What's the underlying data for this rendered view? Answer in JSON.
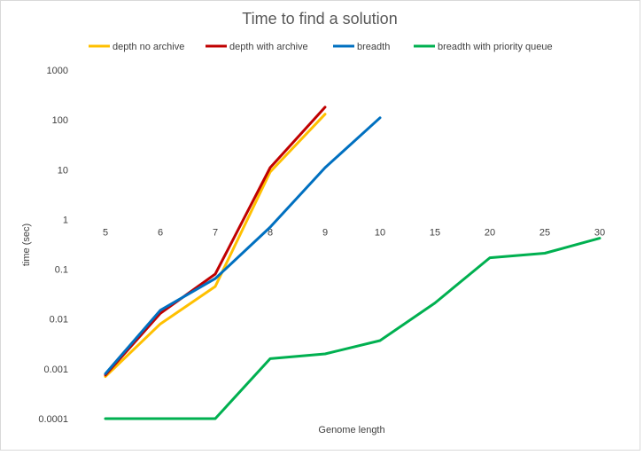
{
  "chart_data": {
    "type": "line",
    "title": "Time to find a solution",
    "xlabel": "Genome  length",
    "ylabel": "time (sec)",
    "yscale": "log",
    "ylim": [
      0.0001,
      1000
    ],
    "y_ticks": [
      "0.0001",
      "0.001",
      "0.01",
      "0.1",
      "1",
      "10",
      "100",
      "1000"
    ],
    "y_tick_values": [
      0.0001,
      0.001,
      0.01,
      0.1,
      1,
      10,
      100,
      1000
    ],
    "categories": [
      "5",
      "6",
      "7",
      "8",
      "9",
      "10",
      "15",
      "20",
      "25",
      "30"
    ],
    "grid": false,
    "legend_position": "top",
    "series": [
      {
        "name": "depth no archive",
        "color": "#FFC000",
        "values": [
          0.0007,
          0.008,
          0.045,
          9,
          130,
          null,
          null,
          null,
          null,
          null
        ]
      },
      {
        "name": "depth with archive",
        "color": "#C00000",
        "values": [
          0.00075,
          0.013,
          0.08,
          11,
          180,
          null,
          null,
          null,
          null,
          null
        ]
      },
      {
        "name": "breadth",
        "color": "#0070C0",
        "values": [
          0.0008,
          0.015,
          0.065,
          0.7,
          11,
          110,
          null,
          null,
          null,
          null
        ]
      },
      {
        "name": "breadth with priority queue",
        "color": "#00B050",
        "values": [
          0.0001,
          0.0001,
          0.0001,
          0.0016,
          0.002,
          0.0037,
          0.021,
          0.17,
          0.21,
          0.42
        ]
      }
    ]
  }
}
